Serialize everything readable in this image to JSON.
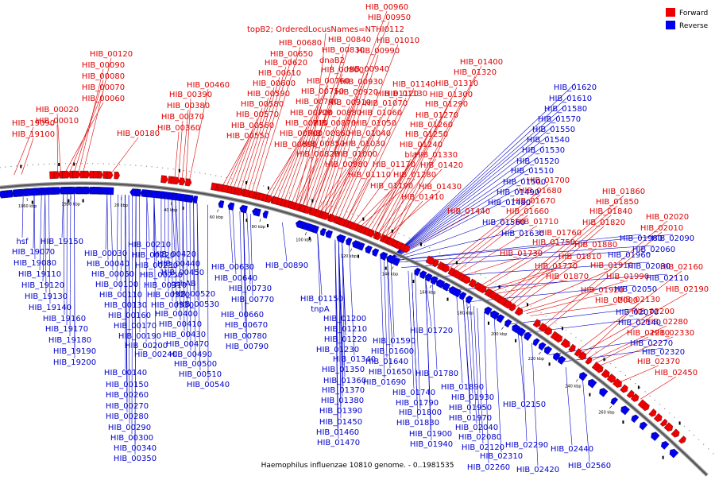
{
  "title": "Haemophilus influenzae 10810 genome. - 0..1981535",
  "legend": [
    {
      "label": "Forward",
      "color": "#ee0000"
    },
    {
      "label": "Reverse",
      "color": "#0000ee"
    }
  ],
  "colors": {
    "forward": "#ee0000",
    "reverse": "#0000ee",
    "backbone": "#555555",
    "forward_line": "#dd0000",
    "reverse_line": "#0000cc"
  },
  "ticks": [
    "1960 kbp",
    "1980 kbp",
    "20 kbp",
    "40 kbp",
    "60 kbp",
    "80 kbp",
    "100 kbp",
    "120 kbp",
    "140 kbp",
    "160 kbp",
    "180 kbp",
    "200 kbp",
    "220 kbp",
    "240 kbp",
    "260 kbp"
  ],
  "forward_labels": [
    {
      "text": "HIB_19090",
      "t": 0.02
    },
    {
      "text": "HIB_19100",
      "t": 0.03
    },
    {
      "text": "HIB_00010",
      "t": 0.078
    },
    {
      "text": "HIB_00020",
      "t": 0.082
    },
    {
      "text": "HIB_00060",
      "t": 0.088
    },
    {
      "text": "HIB_00070",
      "t": 0.094
    },
    {
      "text": "HIB_00080",
      "t": 0.1
    },
    {
      "text": "HIB_00090",
      "t": 0.106
    },
    {
      "text": "HIB_00120",
      "t": 0.112
    },
    {
      "text": "HIB_00180",
      "t": 0.15
    },
    {
      "text": "HIB_00360",
      "t": 0.235
    },
    {
      "text": "HIB_00370",
      "t": 0.24
    },
    {
      "text": "HIB_00380",
      "t": 0.245
    },
    {
      "text": "HIB_00390",
      "t": 0.25
    },
    {
      "text": "HIB_00460",
      "t": 0.255
    },
    {
      "text": "HIB_00550",
      "t": 0.3
    },
    {
      "text": "HIB_00560",
      "t": 0.305
    },
    {
      "text": "HIB_00570",
      "t": 0.31
    },
    {
      "text": "HIB_00580",
      "t": 0.315
    },
    {
      "text": "HIB_00590",
      "t": 0.32
    },
    {
      "text": "HIB_00600",
      "t": 0.325
    },
    {
      "text": "HIB_00610",
      "t": 0.33
    },
    {
      "text": "HIB_00620",
      "t": 0.335
    },
    {
      "text": "HIB_00650",
      "t": 0.34
    },
    {
      "text": "HIB_00680",
      "t": 0.345
    },
    {
      "text": "HIB_00690",
      "t": 0.36
    },
    {
      "text": "HIB_00700",
      "t": 0.365
    },
    {
      "text": "HIB_00710",
      "t": 0.37
    },
    {
      "text": "HIB_00720",
      "t": 0.375
    },
    {
      "text": "HIB_00740",
      "t": 0.38
    },
    {
      "text": "HIB_00750",
      "t": 0.385
    },
    {
      "text": "HIB_00760",
      "t": 0.39
    },
    {
      "text": "HIB_00800",
      "t": 0.395
    },
    {
      "text": "dnaB2",
      "t": 0.4
    },
    {
      "text": "HIB_00830",
      "t": 0.405
    },
    {
      "text": "HIB_00840",
      "t": 0.41
    },
    {
      "text": "topB2; OrderedLocusNames=NTHI0112",
      "t": 0.415
    },
    {
      "text": "HIB_00950",
      "t": 0.42
    },
    {
      "text": "HIB_00960",
      "t": 0.425
    },
    {
      "text": "HIB_00820",
      "t": 0.4
    },
    {
      "text": "HIB_00850",
      "t": 0.405
    },
    {
      "text": "HIB_00860",
      "t": 0.41
    },
    {
      "text": "HIB_00870",
      "t": 0.415
    },
    {
      "text": "HIB_00880",
      "t": 0.42
    },
    {
      "text": "HIB_00910",
      "t": 0.425
    },
    {
      "text": "HIB_00920",
      "t": 0.43
    },
    {
      "text": "HIB_00930",
      "t": 0.435
    },
    {
      "text": "HIB_00940",
      "t": 0.44
    },
    {
      "text": "HIB_00990",
      "t": 0.445
    },
    {
      "text": "HIB_01010",
      "t": 0.45
    },
    {
      "text": "HIB_00980",
      "t": 0.43
    },
    {
      "text": "HIB_01000",
      "t": 0.435
    },
    {
      "text": "HIB_01030",
      "t": 0.44
    },
    {
      "text": "HIB_01040",
      "t": 0.445
    },
    {
      "text": "HIB_01050",
      "t": 0.45
    },
    {
      "text": "HIB_01060",
      "t": 0.455
    },
    {
      "text": "HIB_01070",
      "t": 0.46
    },
    {
      "text": "HIB_01120",
      "t": 0.465
    },
    {
      "text": "HIB_01130",
      "t": 0.47
    },
    {
      "text": "HIB_01140",
      "t": 0.475
    },
    {
      "text": "HIB_01110",
      "t": 0.47
    },
    {
      "text": "HIB_01170",
      "t": 0.48
    },
    {
      "text": "HIB_01190",
      "t": 0.485
    },
    {
      "text": "HIB_01280",
      "t": 0.49
    },
    {
      "text": "HIB_01240",
      "t": 0.495
    },
    {
      "text": "HIB_01250",
      "t": 0.5
    },
    {
      "text": "HIB_01260",
      "t": 0.505
    },
    {
      "text": "HIB_01270",
      "t": 0.51
    },
    {
      "text": "HIB_01290",
      "t": 0.515
    },
    {
      "text": "HIB_01300",
      "t": 0.52
    },
    {
      "text": "HIB_01310",
      "t": 0.525
    },
    {
      "text": "HIB_01320",
      "t": 0.53
    },
    {
      "text": "HIB_01400",
      "t": 0.535
    },
    {
      "text": "bla",
      "t": 0.51
    },
    {
      "text": "HIB_01330",
      "t": 0.515
    },
    {
      "text": "HIB_01420",
      "t": 0.52
    },
    {
      "text": "HIB_01430",
      "t": 0.525
    },
    {
      "text": "HIB_01410",
      "t": 0.53
    },
    {
      "text": "HIB_01440",
      "t": 0.56
    },
    {
      "text": "HIB_01700",
      "t": 0.61
    },
    {
      "text": "HIB_01680",
      "t": 0.615
    },
    {
      "text": "HIB_01670",
      "t": 0.62
    },
    {
      "text": "HIB_01660",
      "t": 0.625
    },
    {
      "text": "HIB_01710",
      "t": 0.63
    },
    {
      "text": "HIB_01730",
      "t": 0.635
    },
    {
      "text": "HIB_01760",
      "t": 0.66
    },
    {
      "text": "HIB_01750",
      "t": 0.665
    },
    {
      "text": "HIB_01810",
      "t": 0.67
    },
    {
      "text": "HIB_01770",
      "t": 0.675
    },
    {
      "text": "HIB_01870",
      "t": 0.68
    },
    {
      "text": "HIB_01860",
      "t": 0.69
    },
    {
      "text": "HIB_01850",
      "t": 0.695
    },
    {
      "text": "HIB_01840",
      "t": 0.7
    },
    {
      "text": "HIB_01820",
      "t": 0.705
    },
    {
      "text": "HIB_01880",
      "t": 0.71
    },
    {
      "text": "HIB_01910",
      "t": 0.715
    },
    {
      "text": "HIB_01990",
      "t": 0.72
    },
    {
      "text": "HIB_01920",
      "t": 0.725
    },
    {
      "text": "HIB_02000",
      "t": 0.73
    },
    {
      "text": "HIB_02020",
      "t": 0.75
    },
    {
      "text": "HIB_02010",
      "t": 0.755
    },
    {
      "text": "HIB_02160",
      "t": 0.8
    },
    {
      "text": "HIB_02190",
      "t": 0.805
    },
    {
      "text": "HIB_02130",
      "t": 0.81
    },
    {
      "text": "HIB_02200",
      "t": 0.815
    },
    {
      "text": "HIB_02280",
      "t": 0.82
    },
    {
      "text": "HIB_02210",
      "t": 0.825
    },
    {
      "text": "HIB_02330",
      "t": 0.83
    },
    {
      "text": "HIB_02370",
      "t": 0.86
    },
    {
      "text": "HIB_02450",
      "t": 0.89
    }
  ],
  "reverse_labels": [
    {
      "text": "HIB_01620"
    },
    {
      "text": "HIB_01610"
    },
    {
      "text": "HIB_01580"
    },
    {
      "text": "HIB_01570"
    },
    {
      "text": "HIB_01550"
    },
    {
      "text": "HIB_01540"
    },
    {
      "text": "HIB_01530"
    },
    {
      "text": "HIB_01520"
    },
    {
      "text": "HIB_01510"
    },
    {
      "text": "HIB_01500"
    },
    {
      "text": "HIB_01490"
    },
    {
      "text": "HIB_01480"
    },
    {
      "text": "HIB_01560"
    },
    {
      "text": "HIB_01630"
    },
    {
      "text": "HIB_01980"
    },
    {
      "text": "HIB_02090"
    },
    {
      "text": "HIB_02060"
    },
    {
      "text": "HIB_01960"
    },
    {
      "text": "HIB_02030"
    },
    {
      "text": "HIB_02110"
    },
    {
      "text": "HIB_02050"
    },
    {
      "text": "HIB_02070"
    },
    {
      "text": "HIB_02140"
    },
    {
      "text": "HIB_02270"
    },
    {
      "text": "HIB_02320"
    },
    {
      "text": "hsf"
    },
    {
      "text": "HIB_19150"
    },
    {
      "text": "HIB_19070"
    },
    {
      "text": "HIB_19080"
    },
    {
      "text": "HIB_19110"
    },
    {
      "text": "HIB_19120"
    },
    {
      "text": "HIB_19130"
    },
    {
      "text": "HIB_19140"
    },
    {
      "text": "HIB_19160"
    },
    {
      "text": "HIB_19170"
    },
    {
      "text": "HIB_19180"
    },
    {
      "text": "HIB_19190"
    },
    {
      "text": "HIB_19200"
    },
    {
      "text": "HIB_00030"
    },
    {
      "text": "HIB_00040"
    },
    {
      "text": "HIB_00050"
    },
    {
      "text": "HIB_00100"
    },
    {
      "text": "HIB_00110"
    },
    {
      "text": "HIB_00130"
    },
    {
      "text": "HIB_00160"
    },
    {
      "text": "HIB_00170"
    },
    {
      "text": "HIB_00190"
    },
    {
      "text": "HIB_00200"
    },
    {
      "text": "HIB_00140"
    },
    {
      "text": "HIB_00150"
    },
    {
      "text": "HIB_00210"
    },
    {
      "text": "HIB_00220"
    },
    {
      "text": "HIB_00230"
    },
    {
      "text": "HIB_00250"
    },
    {
      "text": "HIB_00310"
    },
    {
      "text": "HIB_00320"
    },
    {
      "text": "HIB_00330"
    },
    {
      "text": "HIB_00400"
    },
    {
      "text": "HIB_00410"
    },
    {
      "text": "HIB_00430"
    },
    {
      "text": "HIB_00470"
    },
    {
      "text": "HIB_00490"
    },
    {
      "text": "HIB_00500"
    },
    {
      "text": "HIB_00510"
    },
    {
      "text": "HIB_00540"
    },
    {
      "text": "HIB_00240"
    },
    {
      "text": "HIB_00260"
    },
    {
      "text": "HIB_00270"
    },
    {
      "text": "HIB_00280"
    },
    {
      "text": "HIB_00290"
    },
    {
      "text": "HIB_00300"
    },
    {
      "text": "HIB_00340"
    },
    {
      "text": "HIB_00350"
    },
    {
      "text": "HIB_00420"
    },
    {
      "text": "HIB_00440"
    },
    {
      "text": "HIB_00450"
    },
    {
      "text": "gshAB"
    },
    {
      "text": "HIB_00520"
    },
    {
      "text": "HIB_00530"
    },
    {
      "text": "HIB_00630"
    },
    {
      "text": "HIB_00640"
    },
    {
      "text": "HIB_00730"
    },
    {
      "text": "HIB_00770"
    },
    {
      "text": "HIB_00660"
    },
    {
      "text": "HIB_00670"
    },
    {
      "text": "HIB_00780"
    },
    {
      "text": "HIB_00790"
    },
    {
      "text": "HIB_00890"
    },
    {
      "text": "HIB_01150"
    },
    {
      "text": "tnpA"
    },
    {
      "text": "HIB_01200"
    },
    {
      "text": "HIB_01210"
    },
    {
      "text": "HIB_01220"
    },
    {
      "text": "HIB_01230"
    },
    {
      "text": "HIB_01340"
    },
    {
      "text": "HIB_01350"
    },
    {
      "text": "HIB_01360"
    },
    {
      "text": "HIB_01370"
    },
    {
      "text": "HIB_01380"
    },
    {
      "text": "HIB_01390"
    },
    {
      "text": "HIB_01450"
    },
    {
      "text": "HIB_01460"
    },
    {
      "text": "HIB_01470"
    },
    {
      "text": "HIB_01590"
    },
    {
      "text": "HIB_01600"
    },
    {
      "text": "HIB_01640"
    },
    {
      "text": "HIB_01650"
    },
    {
      "text": "HIB_01690"
    },
    {
      "text": "HIB_01720"
    },
    {
      "text": "HIB_01780"
    },
    {
      "text": "HIB_01740"
    },
    {
      "text": "HIB_01890"
    },
    {
      "text": "HIB_01790"
    },
    {
      "text": "HIB_01930"
    },
    {
      "text": "HIB_01800"
    },
    {
      "text": "HIB_01950"
    },
    {
      "text": "HIB_01830"
    },
    {
      "text": "HIB_01970"
    },
    {
      "text": "HIB_02040"
    },
    {
      "text": "HIB_01900"
    },
    {
      "text": "HIB_02080"
    },
    {
      "text": "HIB_01940"
    },
    {
      "text": "HIB_02120"
    },
    {
      "text": "HIB_02150"
    },
    {
      "text": "HIB_02290"
    },
    {
      "text": "HIB_02310"
    },
    {
      "text": "HIB_02260"
    },
    {
      "text": "HIB_02420"
    },
    {
      "text": "HIB_02440"
    },
    {
      "text": "HIB_02560"
    }
  ]
}
